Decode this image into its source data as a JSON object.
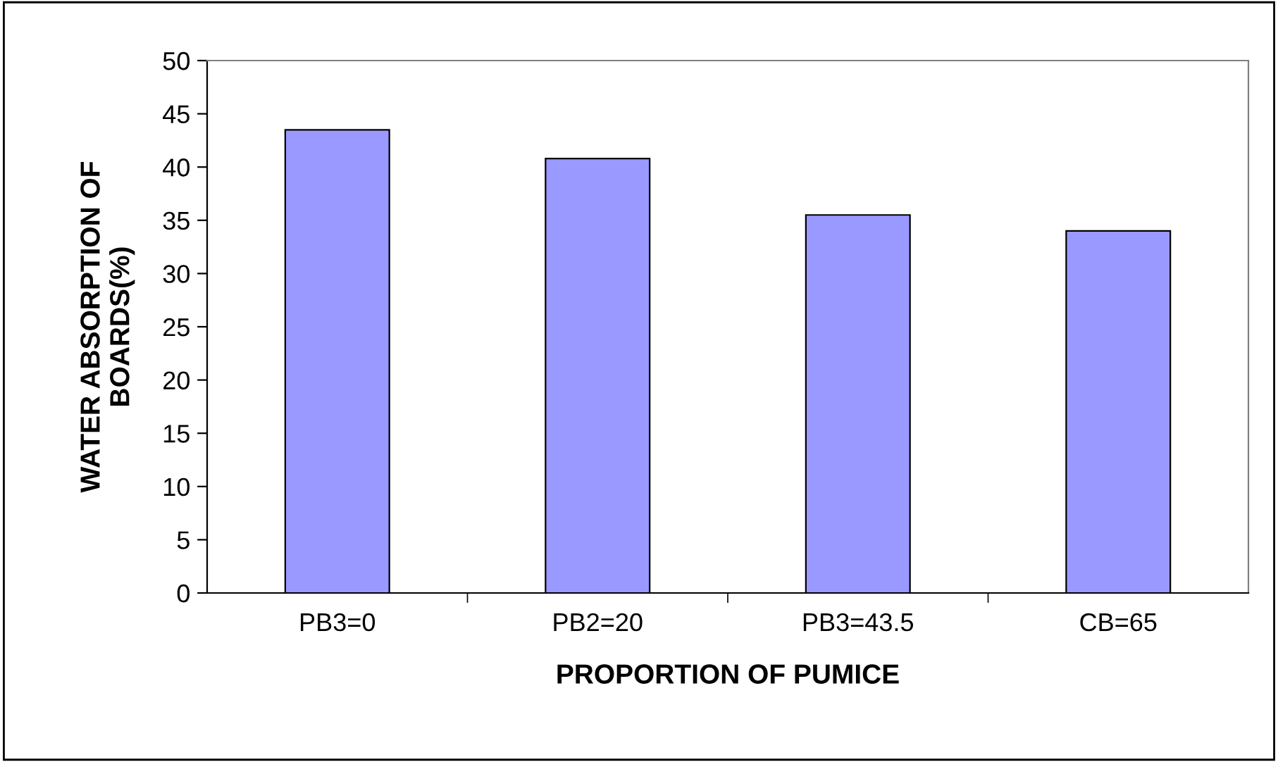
{
  "chart_data": {
    "type": "bar",
    "xlabel": "PROPORTION OF PUMICE",
    "ylabel": "WATER ABSORPTION OF\nBOARDS(%)",
    "categories": [
      "PB3=0",
      "PB2=20",
      "PB3=43.5",
      "CB=65"
    ],
    "values": [
      43.5,
      40.8,
      35.5,
      34.0
    ],
    "color": "#9999ff",
    "ylim": [
      0,
      50
    ],
    "yticks": [
      0,
      5,
      10,
      15,
      20,
      25,
      30,
      35,
      40,
      45,
      50
    ],
    "grid": false
  }
}
